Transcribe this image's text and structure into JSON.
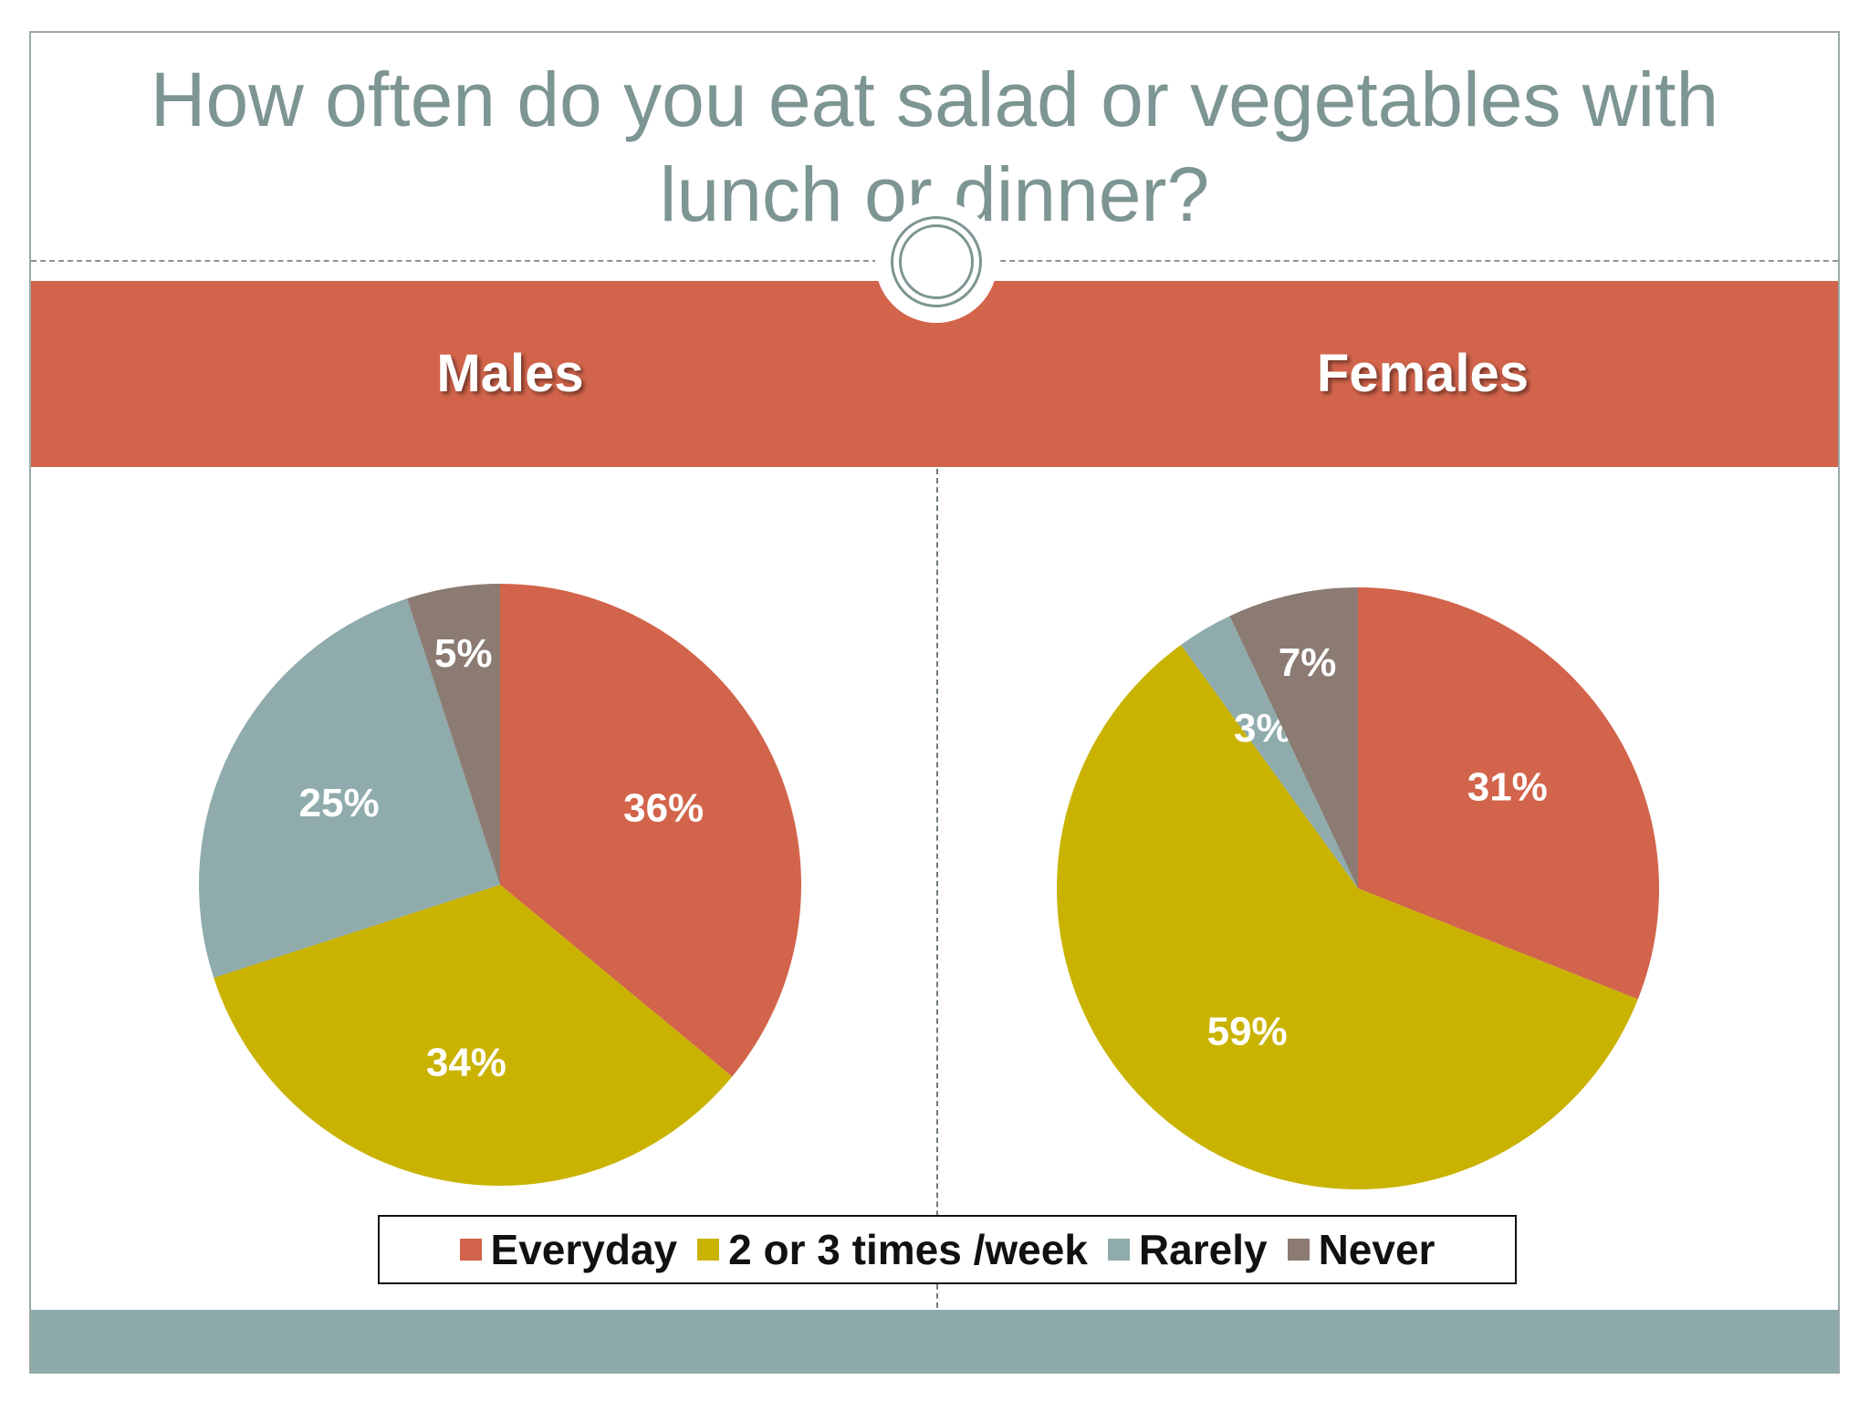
{
  "title": "How often do you eat salad or vegetables with lunch   or dinner?",
  "colors": {
    "Everyday": "#d2644b",
    "2 or 3 times /week": "#c9b300",
    "Rarely": "#8fabab",
    "Never": "#8b7b72"
  },
  "legend": [
    "Everyday",
    "2 or 3 times /week",
    "Rarely",
    "Never"
  ],
  "chart_data": [
    {
      "type": "pie",
      "title": "Males",
      "categories": [
        "Everyday",
        "2 or 3 times /week",
        "Rarely",
        "Never"
      ],
      "values": [
        36,
        34,
        25,
        5
      ],
      "labels": [
        "36%",
        "34%",
        "25%",
        "5%"
      ]
    },
    {
      "type": "pie",
      "title": "Females",
      "categories": [
        "Everyday",
        "2 or 3 times /week",
        "Rarely",
        "Never"
      ],
      "values": [
        31,
        59,
        3,
        7
      ],
      "labels": [
        "31%",
        "59%",
        "3%",
        "7%"
      ]
    }
  ]
}
